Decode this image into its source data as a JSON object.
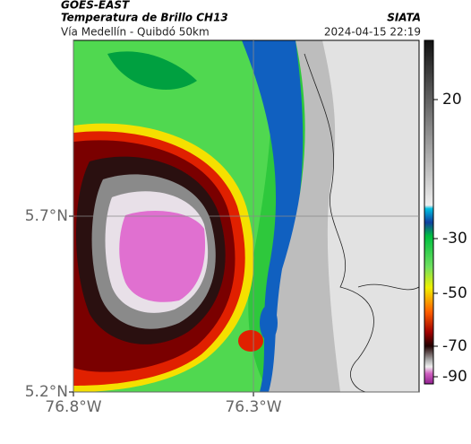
{
  "header": {
    "source": "GOES-EAST",
    "title": "Temperatura de Brillo CH13",
    "subtitle": "Vía Medellín - Quibdó 50km",
    "agency": "SIATA",
    "timestamp": "2024-04-15 22:19"
  },
  "map": {
    "xlim": [
      -76.8,
      -75.84
    ],
    "ylim": [
      5.2,
      6.2
    ],
    "xticks": [
      {
        "value": -76.8,
        "label": "76.8°W"
      },
      {
        "value": -76.3,
        "label": "76.3°W"
      }
    ],
    "yticks": [
      {
        "value": 5.2,
        "label": "5.2°N"
      },
      {
        "value": 5.7,
        "label": "5.7°N"
      }
    ],
    "grid": true
  },
  "colorbar": {
    "ticks": [
      20,
      -30,
      -50,
      -70,
      -90
    ]
  }
}
